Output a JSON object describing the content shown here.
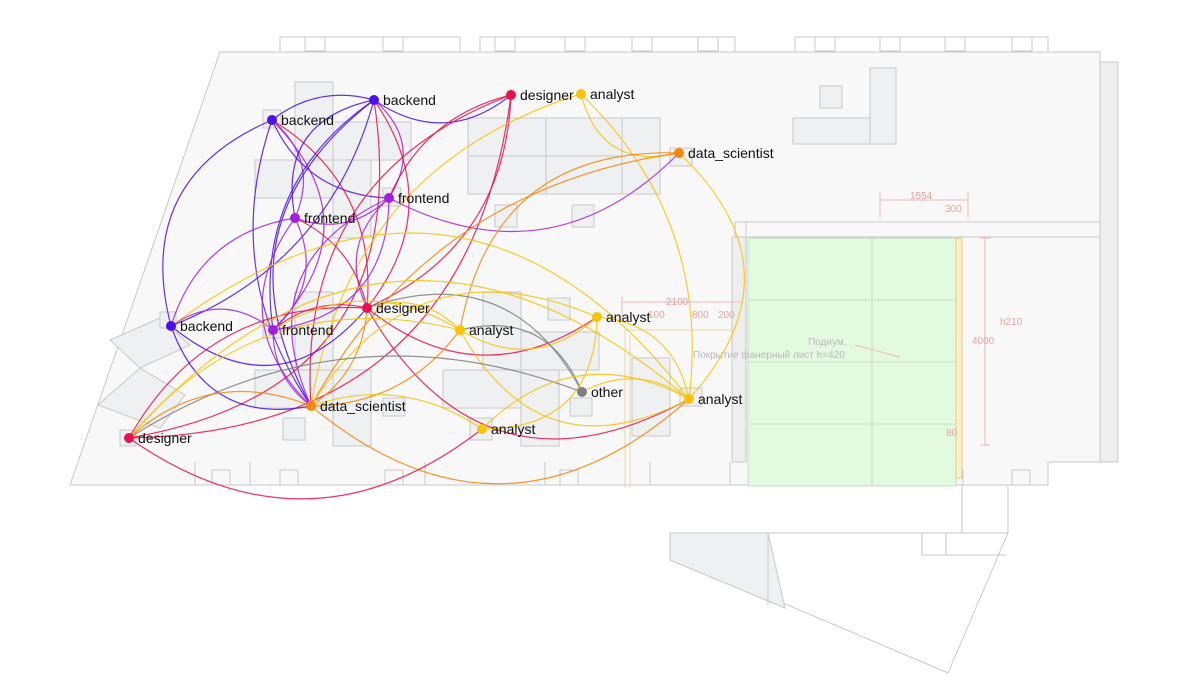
{
  "colors": {
    "backend": "#4b0fe8",
    "frontend": "#a31ee0",
    "designer": "#e8104a",
    "data_scientist": "#f7860a",
    "analyst": "#f7c40a",
    "other": "#7f7f7f"
  },
  "plan": {
    "dims": [
      "1554",
      "300",
      "2100",
      "800",
      "200",
      "100",
      "h210",
      "4000",
      "80"
    ],
    "podium_line1": "Подиум.",
    "podium_line2": "Покрытие фанерный лист h=420"
  },
  "nodes": [
    {
      "id": "n1",
      "label": "backend",
      "type": "backend"
    },
    {
      "id": "n2",
      "label": "backend",
      "type": "backend"
    },
    {
      "id": "n3",
      "label": "designer",
      "type": "designer"
    },
    {
      "id": "n4",
      "label": "analyst",
      "type": "analyst"
    },
    {
      "id": "n5",
      "label": "data_scientist",
      "type": "data_scientist"
    },
    {
      "id": "n6",
      "label": "frontend",
      "type": "frontend"
    },
    {
      "id": "n7",
      "label": "frontend",
      "type": "frontend"
    },
    {
      "id": "n8",
      "label": "designer",
      "type": "designer"
    },
    {
      "id": "n9",
      "label": "backend",
      "type": "backend"
    },
    {
      "id": "n10",
      "label": "frontend",
      "type": "frontend"
    },
    {
      "id": "n11",
      "label": "analyst",
      "type": "analyst"
    },
    {
      "id": "n12",
      "label": "analyst",
      "type": "analyst"
    },
    {
      "id": "n13",
      "label": "other",
      "type": "other"
    },
    {
      "id": "n14",
      "label": "analyst",
      "type": "analyst"
    },
    {
      "id": "n15",
      "label": "data_scientist",
      "type": "data_scientist"
    },
    {
      "id": "n16",
      "label": "analyst",
      "type": "analyst"
    },
    {
      "id": "n17",
      "label": "designer",
      "type": "designer"
    }
  ],
  "edges": [
    [
      "n1",
      "n2"
    ],
    [
      "n1",
      "n6"
    ],
    [
      "n1",
      "n7"
    ],
    [
      "n1",
      "n9"
    ],
    [
      "n1",
      "n10"
    ],
    [
      "n1",
      "n15"
    ],
    [
      "n1",
      "n8"
    ],
    [
      "n2",
      "n3"
    ],
    [
      "n2",
      "n6"
    ],
    [
      "n2",
      "n7"
    ],
    [
      "n2",
      "n9"
    ],
    [
      "n2",
      "n10"
    ],
    [
      "n2",
      "n8"
    ],
    [
      "n2",
      "n15"
    ],
    [
      "n2",
      "n17"
    ],
    [
      "n3",
      "n6"
    ],
    [
      "n3",
      "n8"
    ],
    [
      "n3",
      "n15"
    ],
    [
      "n3",
      "n17"
    ],
    [
      "n4",
      "n5"
    ],
    [
      "n4",
      "n14"
    ],
    [
      "n4",
      "n15"
    ],
    [
      "n5",
      "n6"
    ],
    [
      "n5",
      "n11"
    ],
    [
      "n5",
      "n14"
    ],
    [
      "n5",
      "n15"
    ],
    [
      "n6",
      "n7"
    ],
    [
      "n6",
      "n8"
    ],
    [
      "n6",
      "n10"
    ],
    [
      "n6",
      "n15"
    ],
    [
      "n7",
      "n8"
    ],
    [
      "n7",
      "n9"
    ],
    [
      "n7",
      "n10"
    ],
    [
      "n7",
      "n15"
    ],
    [
      "n8",
      "n9"
    ],
    [
      "n8",
      "n10"
    ],
    [
      "n8",
      "n11"
    ],
    [
      "n8",
      "n12"
    ],
    [
      "n8",
      "n13"
    ],
    [
      "n8",
      "n14"
    ],
    [
      "n8",
      "n15"
    ],
    [
      "n8",
      "n17"
    ],
    [
      "n9",
      "n10"
    ],
    [
      "n9",
      "n15"
    ],
    [
      "n9",
      "n14"
    ],
    [
      "n10",
      "n15"
    ],
    [
      "n10",
      "n11"
    ],
    [
      "n11",
      "n12"
    ],
    [
      "n11",
      "n13"
    ],
    [
      "n11",
      "n14"
    ],
    [
      "n11",
      "n15"
    ],
    [
      "n11",
      "n17"
    ],
    [
      "n12",
      "n14"
    ],
    [
      "n12",
      "n15"
    ],
    [
      "n12",
      "n16"
    ],
    [
      "n13",
      "n17"
    ],
    [
      "n13",
      "n14"
    ],
    [
      "n14",
      "n16"
    ],
    [
      "n14",
      "n15"
    ],
    [
      "n14",
      "n17"
    ],
    [
      "n15",
      "n16"
    ],
    [
      "n15",
      "n17"
    ],
    [
      "n16",
      "n17"
    ]
  ]
}
